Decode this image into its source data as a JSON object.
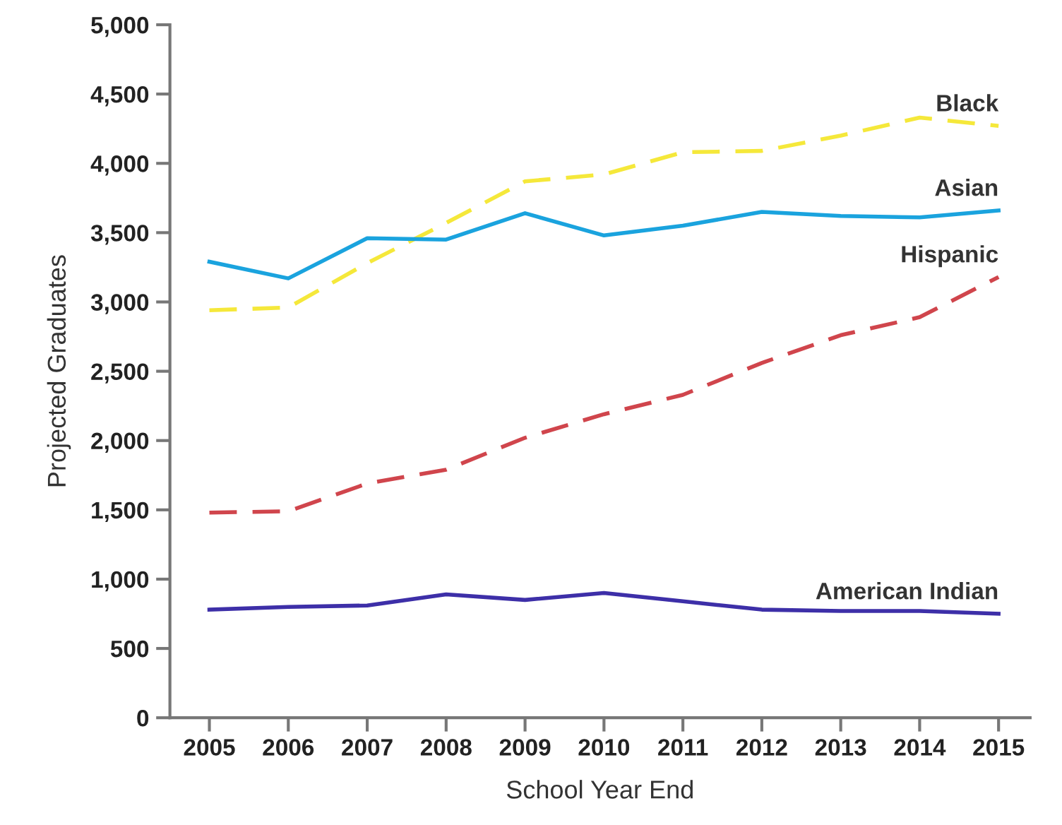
{
  "chart_data": {
    "type": "line",
    "xlabel": "School Year End",
    "ylabel": "Projected Graduates",
    "categories": [
      "2005",
      "2006",
      "2007",
      "2008",
      "2009",
      "2010",
      "2011",
      "2012",
      "2013",
      "2014",
      "2015"
    ],
    "series": [
      {
        "name": "Black",
        "color": "#f5e83a",
        "line_style": "dashed",
        "values": [
          2940,
          2960,
          3280,
          3570,
          3870,
          3920,
          4080,
          4090,
          4200,
          4330,
          4270
        ]
      },
      {
        "name": "Asian",
        "color": "#1aa3de",
        "line_style": "solid",
        "values": [
          3290,
          3170,
          3460,
          3450,
          3640,
          3480,
          3550,
          3650,
          3620,
          3610,
          3660
        ]
      },
      {
        "name": "Hispanic",
        "color": "#d0454c",
        "line_style": "dashed",
        "values": [
          1480,
          1490,
          1690,
          1790,
          2020,
          2190,
          2330,
          2560,
          2760,
          2890,
          3180
        ]
      },
      {
        "name": "American Indian",
        "color": "#3d2fa8",
        "line_style": "solid",
        "values": [
          780,
          800,
          810,
          890,
          850,
          900,
          840,
          780,
          770,
          770,
          750
        ]
      }
    ],
    "ylim": [
      0,
      5000
    ],
    "yticks": [
      {
        "value": 0,
        "label": "0"
      },
      {
        "value": 500,
        "label": "500"
      },
      {
        "value": 1000,
        "label": "1,000"
      },
      {
        "value": 1500,
        "label": "1,500"
      },
      {
        "value": 2000,
        "label": "2,000"
      },
      {
        "value": 2500,
        "label": "2,500"
      },
      {
        "value": 3000,
        "label": "3,000"
      },
      {
        "value": 3500,
        "label": "3,500"
      },
      {
        "value": 4000,
        "label": "4,000"
      },
      {
        "value": 4500,
        "label": "4,500"
      },
      {
        "value": 5000,
        "label": "5,000"
      }
    ],
    "grid": false,
    "legend": false,
    "marker": "none"
  }
}
